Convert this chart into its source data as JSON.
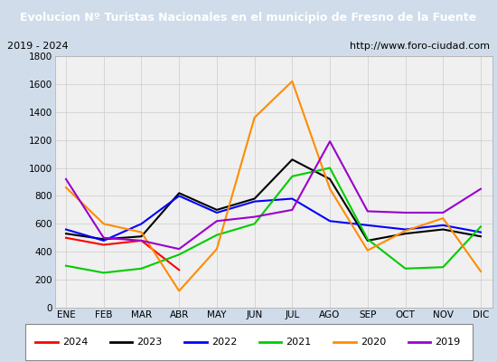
{
  "title": "Evolucion Nº Turistas Nacionales en el municipio de Fresno de la Fuente",
  "subtitle_left": "2019 - 2024",
  "subtitle_right": "http://www.foro-ciudad.com",
  "title_bg_color": "#4d79a0",
  "title_text_color": "#ffffff",
  "months": [
    "ENE",
    "FEB",
    "MAR",
    "ABR",
    "MAY",
    "JUN",
    "JUL",
    "AGO",
    "SEP",
    "OCT",
    "NOV",
    "DIC"
  ],
  "ylim": [
    0,
    1800
  ],
  "yticks": [
    0,
    200,
    400,
    600,
    800,
    1000,
    1200,
    1400,
    1600,
    1800
  ],
  "series": {
    "2024": {
      "color": "#ff0000",
      "data": [
        500,
        450,
        480,
        270,
        null,
        null,
        null,
        null,
        null,
        null,
        null,
        null
      ]
    },
    "2023": {
      "color": "#000000",
      "data": [
        530,
        490,
        510,
        820,
        700,
        780,
        1060,
        920,
        480,
        530,
        560,
        510
      ]
    },
    "2022": {
      "color": "#0000ff",
      "data": [
        560,
        480,
        600,
        800,
        680,
        760,
        780,
        620,
        590,
        560,
        590,
        540
      ]
    },
    "2021": {
      "color": "#00cc00",
      "data": [
        300,
        250,
        280,
        380,
        520,
        600,
        940,
        1000,
        490,
        280,
        290,
        580
      ]
    },
    "2020": {
      "color": "#ff8c00",
      "data": [
        860,
        600,
        540,
        120,
        420,
        1360,
        1620,
        850,
        410,
        550,
        640,
        260
      ]
    },
    "2019": {
      "color": "#9900cc",
      "data": [
        920,
        500,
        480,
        420,
        620,
        650,
        700,
        1190,
        690,
        680,
        680,
        850
      ]
    }
  },
  "legend_order": [
    "2024",
    "2023",
    "2022",
    "2021",
    "2020",
    "2019"
  ],
  "grid_color": "#cccccc",
  "plot_bg_color": "#f0f0f0",
  "outer_bg_color": "#d0dcea"
}
